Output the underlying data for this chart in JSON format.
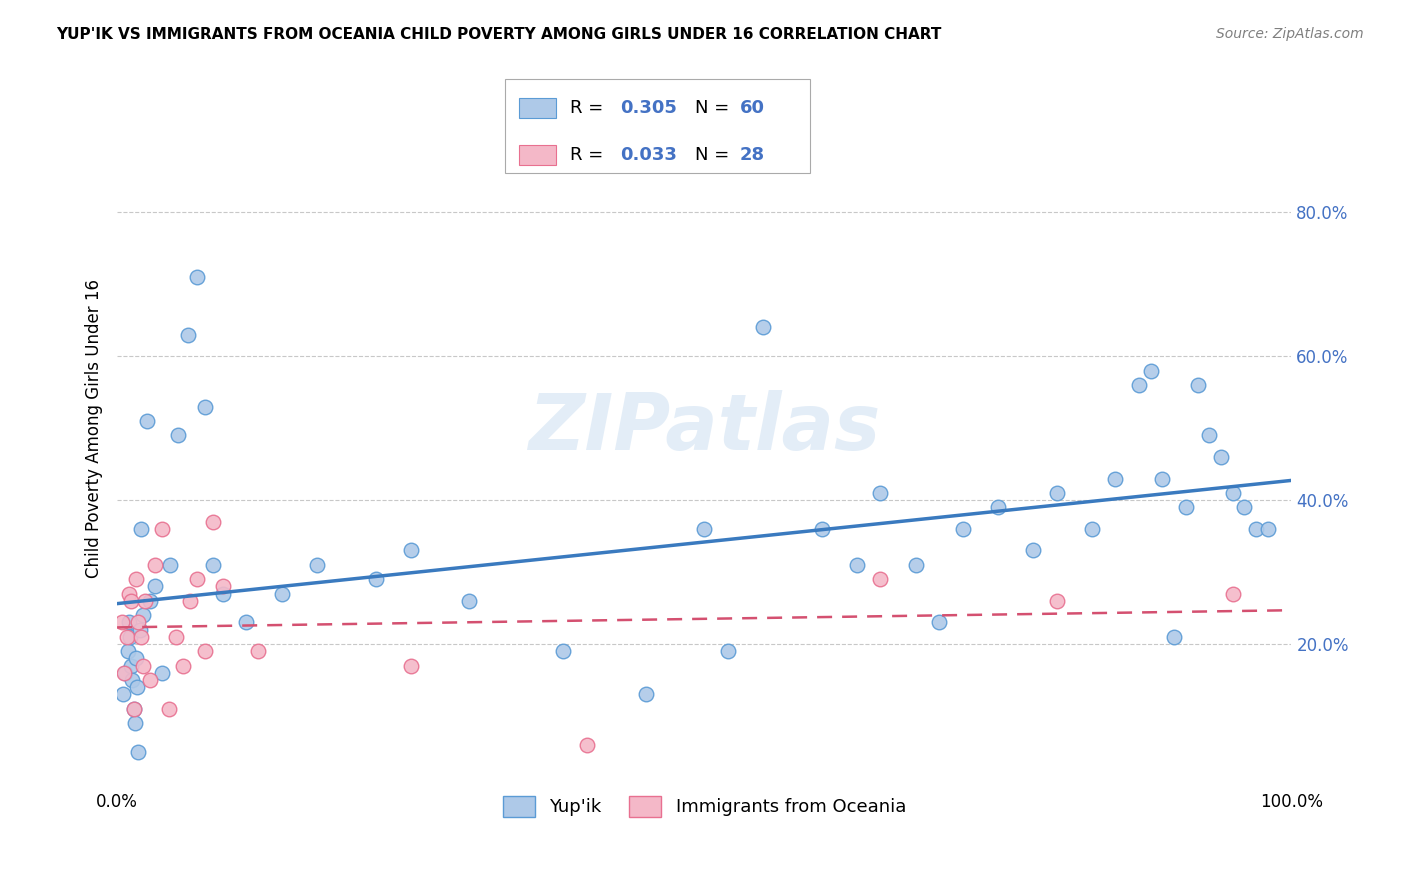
{
  "title": "YUP'IK VS IMMIGRANTS FROM OCEANIA CHILD POVERTY AMONG GIRLS UNDER 16 CORRELATION CHART",
  "source": "Source: ZipAtlas.com",
  "ylabel": "Child Poverty Among Girls Under 16",
  "xlim": [
    0.0,
    1.0
  ],
  "ylim": [
    0.0,
    1.0
  ],
  "legend_labels": [
    "Yup'ik",
    "Immigrants from Oceania"
  ],
  "series1_color": "#aec9e8",
  "series2_color": "#f4b8c8",
  "series1_edge_color": "#5b9bd5",
  "series2_edge_color": "#e87090",
  "series1_line_color": "#3a7abf",
  "series2_line_color": "#d45070",
  "R1": "0.305",
  "N1": "60",
  "R2": "0.033",
  "N2": "28",
  "stat_color": "#4472c4",
  "watermark": "ZIPatlas",
  "background_color": "#ffffff",
  "grid_color": "#c8c8c8",
  "ytick_color": "#4472c4",
  "source_color": "#808080",
  "series1_x": [
    0.005,
    0.007,
    0.009,
    0.01,
    0.011,
    0.012,
    0.013,
    0.014,
    0.015,
    0.016,
    0.017,
    0.018,
    0.019,
    0.02,
    0.022,
    0.025,
    0.028,
    0.032,
    0.038,
    0.045,
    0.052,
    0.06,
    0.068,
    0.075,
    0.082,
    0.09,
    0.11,
    0.14,
    0.17,
    0.22,
    0.25,
    0.3,
    0.38,
    0.45,
    0.5,
    0.52,
    0.55,
    0.6,
    0.63,
    0.65,
    0.68,
    0.7,
    0.72,
    0.75,
    0.78,
    0.8,
    0.83,
    0.85,
    0.87,
    0.88,
    0.89,
    0.9,
    0.91,
    0.92,
    0.93,
    0.94,
    0.95,
    0.96,
    0.97,
    0.98
  ],
  "series1_y": [
    0.13,
    0.16,
    0.19,
    0.23,
    0.21,
    0.17,
    0.15,
    0.11,
    0.09,
    0.18,
    0.14,
    0.05,
    0.22,
    0.36,
    0.24,
    0.51,
    0.26,
    0.28,
    0.16,
    0.31,
    0.49,
    0.63,
    0.71,
    0.53,
    0.31,
    0.27,
    0.23,
    0.27,
    0.31,
    0.29,
    0.33,
    0.26,
    0.19,
    0.13,
    0.36,
    0.19,
    0.64,
    0.36,
    0.31,
    0.41,
    0.31,
    0.23,
    0.36,
    0.39,
    0.33,
    0.41,
    0.36,
    0.43,
    0.56,
    0.58,
    0.43,
    0.21,
    0.39,
    0.56,
    0.49,
    0.46,
    0.41,
    0.39,
    0.36,
    0.36
  ],
  "series2_x": [
    0.004,
    0.006,
    0.008,
    0.01,
    0.012,
    0.014,
    0.016,
    0.018,
    0.02,
    0.022,
    0.024,
    0.028,
    0.032,
    0.038,
    0.044,
    0.05,
    0.056,
    0.062,
    0.068,
    0.075,
    0.082,
    0.09,
    0.12,
    0.25,
    0.4,
    0.65,
    0.8,
    0.95
  ],
  "series2_y": [
    0.23,
    0.16,
    0.21,
    0.27,
    0.26,
    0.11,
    0.29,
    0.23,
    0.21,
    0.17,
    0.26,
    0.15,
    0.31,
    0.36,
    0.11,
    0.21,
    0.17,
    0.26,
    0.29,
    0.19,
    0.37,
    0.28,
    0.19,
    0.17,
    0.06,
    0.29,
    0.26,
    0.27
  ]
}
